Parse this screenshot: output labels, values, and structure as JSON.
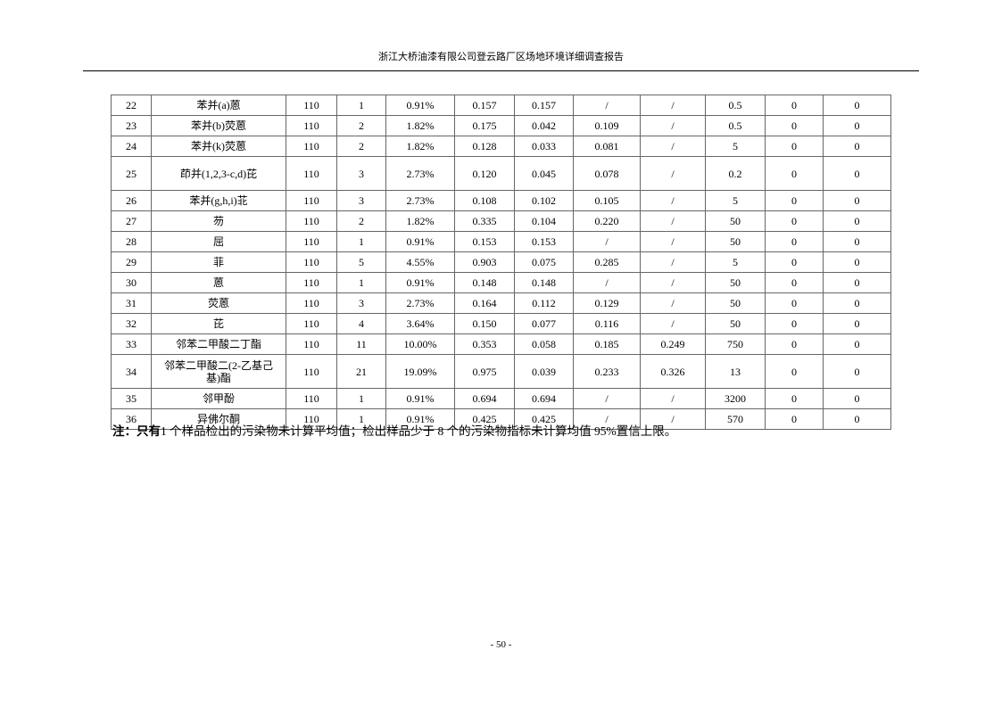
{
  "header": "浙江大桥油漆有限公司登云路厂区场地环境详细调查报告",
  "rows": [
    [
      "22",
      "苯并(a)蒽",
      "110",
      "1",
      "0.91%",
      "0.157",
      "0.157",
      "/",
      "/",
      "0.5",
      "0",
      "0"
    ],
    [
      "23",
      "苯并(b)荧蒽",
      "110",
      "2",
      "1.82%",
      "0.175",
      "0.042",
      "0.109",
      "/",
      "0.5",
      "0",
      "0"
    ],
    [
      "24",
      "苯并(k)荧蒽",
      "110",
      "2",
      "1.82%",
      "0.128",
      "0.033",
      "0.081",
      "/",
      "5",
      "0",
      "0"
    ],
    [
      "25",
      "茚并(1,2,3-c,d)芘",
      "110",
      "3",
      "2.73%",
      "0.120",
      "0.045",
      "0.078",
      "/",
      "0.2",
      "0",
      "0"
    ],
    [
      "26",
      "苯并(g,h,i)苝",
      "110",
      "3",
      "2.73%",
      "0.108",
      "0.102",
      "0.105",
      "/",
      "5",
      "0",
      "0"
    ],
    [
      "27",
      "芴",
      "110",
      "2",
      "1.82%",
      "0.335",
      "0.104",
      "0.220",
      "/",
      "50",
      "0",
      "0"
    ],
    [
      "28",
      "屈",
      "110",
      "1",
      "0.91%",
      "0.153",
      "0.153",
      "/",
      "/",
      "50",
      "0",
      "0"
    ],
    [
      "29",
      "菲",
      "110",
      "5",
      "4.55%",
      "0.903",
      "0.075",
      "0.285",
      "/",
      "5",
      "0",
      "0"
    ],
    [
      "30",
      "蒽",
      "110",
      "1",
      "0.91%",
      "0.148",
      "0.148",
      "/",
      "/",
      "50",
      "0",
      "0"
    ],
    [
      "31",
      "荧蒽",
      "110",
      "3",
      "2.73%",
      "0.164",
      "0.112",
      "0.129",
      "/",
      "50",
      "0",
      "0"
    ],
    [
      "32",
      "芘",
      "110",
      "4",
      "3.64%",
      "0.150",
      "0.077",
      "0.116",
      "/",
      "50",
      "0",
      "0"
    ],
    [
      "33",
      "邻苯二甲酸二丁酯",
      "110",
      "11",
      "10.00%",
      "0.353",
      "0.058",
      "0.185",
      "0.249",
      "750",
      "0",
      "0"
    ],
    [
      "34",
      "邻苯二甲酸二(2-乙基己基)酯",
      "110",
      "21",
      "19.09%",
      "0.975",
      "0.039",
      "0.233",
      "0.326",
      "13",
      "0",
      "0"
    ],
    [
      "35",
      "邻甲酚",
      "110",
      "1",
      "0.91%",
      "0.694",
      "0.694",
      "/",
      "/",
      "3200",
      "0",
      "0"
    ],
    [
      "36",
      "异佛尔酮",
      "110",
      "1",
      "0.91%",
      "0.425",
      "0.425",
      "/",
      "/",
      "570",
      "0",
      "0"
    ]
  ],
  "note": {
    "bold": "注：只有",
    "text": "1 个样品检出的污染物未计算平均值；检出样品少于 8 个的污染物指标未计算均值 95%置信上限。"
  },
  "footer": "- 50 -"
}
